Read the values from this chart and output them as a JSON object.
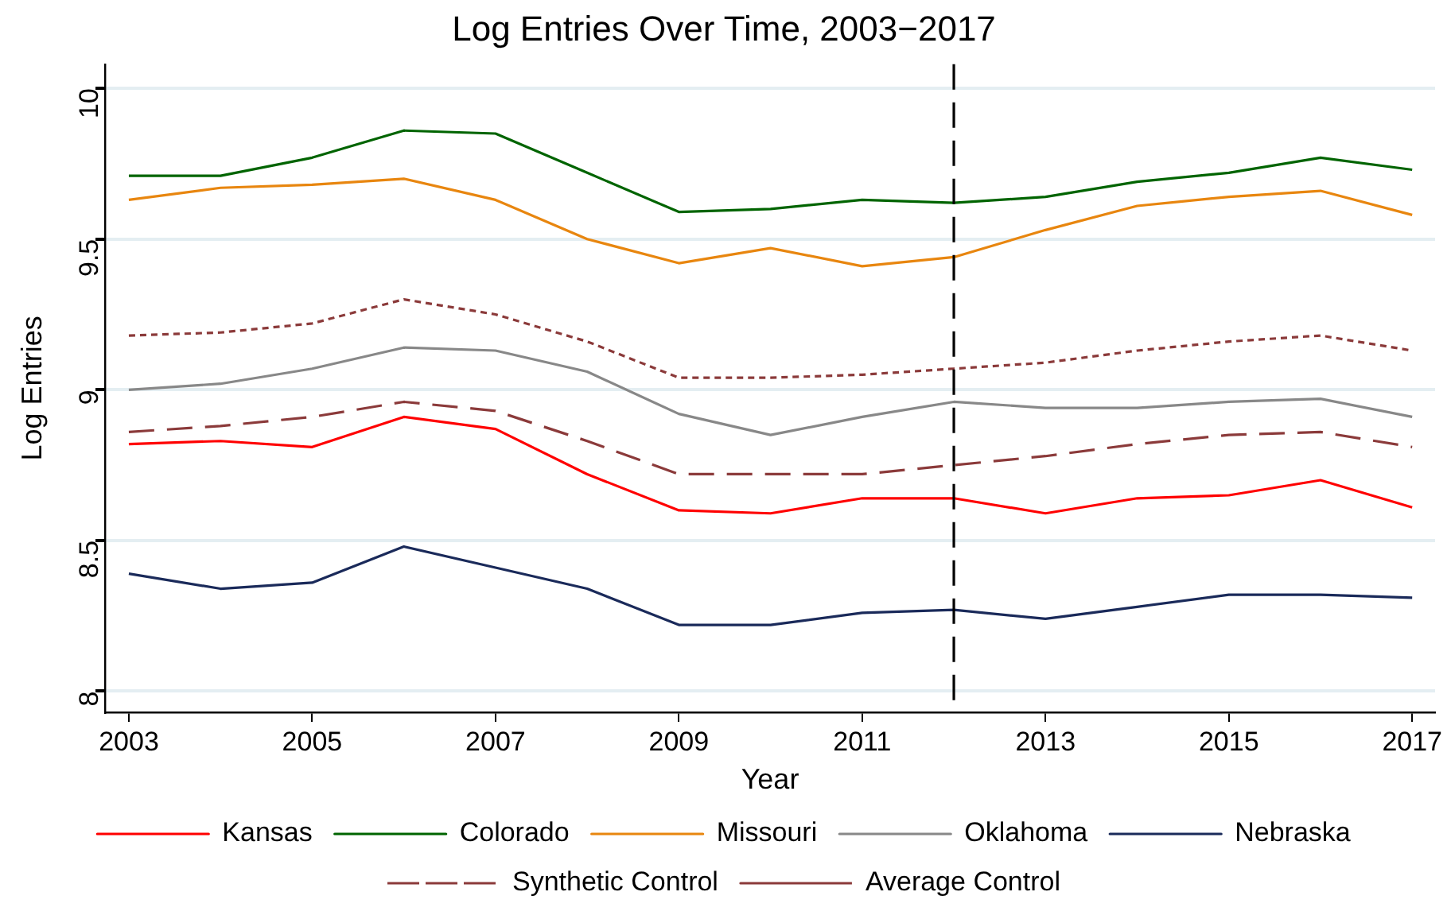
{
  "chart_data": {
    "type": "line",
    "title": "Log Entries Over Time, 2003−2017",
    "xlabel": "Year",
    "ylabel": "Log Entries",
    "x": [
      2003,
      2004,
      2005,
      2006,
      2007,
      2008,
      2009,
      2010,
      2011,
      2012,
      2013,
      2014,
      2015,
      2016,
      2017
    ],
    "xlim": [
      2002.74,
      2017.25
    ],
    "xticks": [
      2003,
      2005,
      2007,
      2009,
      2011,
      2013,
      2015,
      2017
    ],
    "ylim": [
      7.93,
      10.08
    ],
    "yticks": [
      8,
      8.5,
      9,
      9.5,
      10
    ],
    "grid": "y",
    "legend": "bottom",
    "marker": "none",
    "series": [
      {
        "name": "Kansas",
        "color": "#ff0000",
        "line_style": "solid",
        "values": [
          8.82,
          8.83,
          8.81,
          8.91,
          8.87,
          8.72,
          8.6,
          8.59,
          8.64,
          8.64,
          8.59,
          8.64,
          8.65,
          8.7,
          8.61
        ]
      },
      {
        "name": "Colorado",
        "color": "#006400",
        "line_style": "solid",
        "values": [
          9.71,
          9.71,
          9.77,
          9.86,
          9.85,
          9.72,
          9.59,
          9.6,
          9.63,
          9.62,
          9.64,
          9.69,
          9.72,
          9.77,
          9.73
        ]
      },
      {
        "name": "Missouri",
        "color": "#e8860f",
        "line_style": "solid",
        "values": [
          9.63,
          9.67,
          9.68,
          9.7,
          9.63,
          9.5,
          9.42,
          9.47,
          9.41,
          9.44,
          9.53,
          9.61,
          9.64,
          9.66,
          9.58
        ]
      },
      {
        "name": "Oklahoma",
        "color": "#888888",
        "line_style": "solid",
        "values": [
          9.0,
          9.02,
          9.07,
          9.14,
          9.13,
          9.06,
          8.92,
          8.85,
          8.91,
          8.96,
          8.94,
          8.94,
          8.96,
          8.97,
          8.91
        ]
      },
      {
        "name": "Nebraska",
        "color": "#1a2a5a",
        "line_style": "solid",
        "values": [
          8.39,
          8.34,
          8.36,
          8.48,
          8.41,
          8.34,
          8.22,
          8.22,
          8.26,
          8.27,
          8.24,
          8.28,
          8.32,
          8.32,
          8.31
        ]
      },
      {
        "name": "Synthetic Control",
        "color": "#8b3a3a",
        "line_style": "dashed",
        "values": [
          8.86,
          8.88,
          8.91,
          8.96,
          8.93,
          8.83,
          8.72,
          8.72,
          8.72,
          8.75,
          8.78,
          8.82,
          8.85,
          8.86,
          8.81
        ]
      },
      {
        "name": "Average Control",
        "color": "#8b3a3a",
        "line_style": "dotted",
        "values": [
          9.18,
          9.19,
          9.22,
          9.3,
          9.25,
          9.16,
          9.04,
          9.04,
          9.05,
          9.07,
          9.09,
          9.13,
          9.16,
          9.18,
          9.13
        ]
      }
    ],
    "ref_lines": [
      {
        "axis": "x",
        "value": 2012,
        "color": "#000000",
        "line_style": "dashed"
      }
    ]
  }
}
